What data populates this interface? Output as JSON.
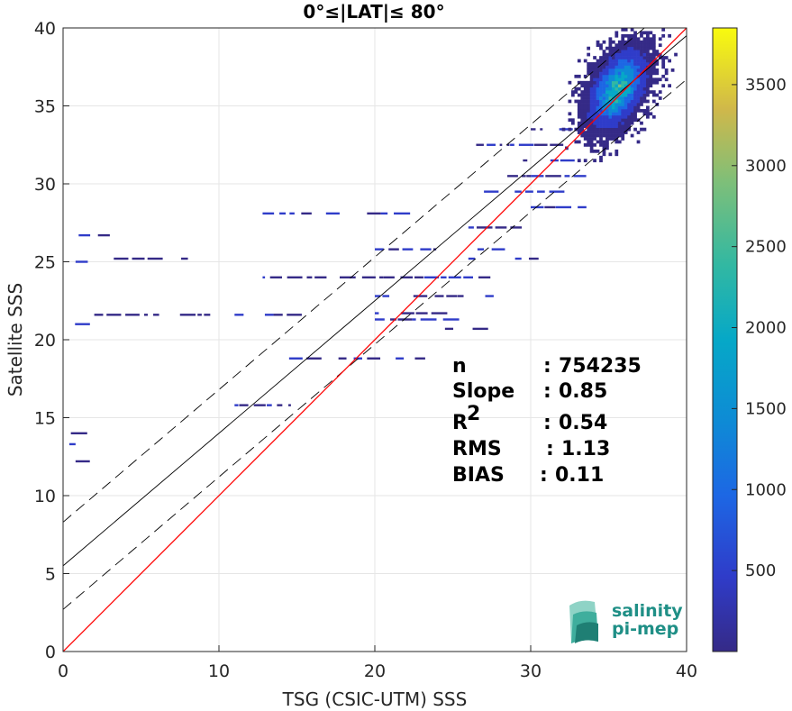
{
  "chart_data": {
    "type": "heatmap",
    "title": "0°≤|LAT|≤ 80°",
    "xlabel": "TSG (CSIC-UTM) SSS",
    "ylabel": "Satellite SSS",
    "xlim": [
      0,
      40
    ],
    "ylim": [
      0,
      40
    ],
    "xticks": [
      "0",
      "10",
      "20",
      "30",
      "40"
    ],
    "yticks": [
      "0",
      "5",
      "10",
      "15",
      "20",
      "25",
      "30",
      "35",
      "40"
    ],
    "grid": true,
    "colorbar": {
      "range": [
        0,
        3850
      ],
      "ticks": [
        "500",
        "1000",
        "1500",
        "2000",
        "2500",
        "3000",
        "3500"
      ],
      "colormap": "parula"
    },
    "stats": [
      {
        "label": "n",
        "sep": ":",
        "value": "754235"
      },
      {
        "label": "Slope",
        "sep": ":",
        "value": "0.85"
      },
      {
        "label": "R",
        "sup": "2",
        "sep": ":",
        "value": "0.54"
      },
      {
        "label": "RMS",
        "sep": ":",
        "value": "1.13"
      },
      {
        "label": "BIAS",
        "sep": ":",
        "value": "0.11"
      }
    ],
    "lines": {
      "identity": {
        "intercept": 0,
        "slope": 1,
        "color": "#ff0000"
      },
      "fit": {
        "intercept": 5.5,
        "slope": 0.85,
        "color": "#000000"
      },
      "fit_upper": {
        "intercept": 8.3,
        "slope": 0.85,
        "color": "#000000",
        "dash": true
      },
      "fit_lower": {
        "intercept": 2.7,
        "slope": 0.85,
        "color": "#000000",
        "dash": true
      }
    },
    "dense_cluster": {
      "x_center": 35.5,
      "y_center": 36.0,
      "x_spread": 1.5,
      "y_spread": 1.8,
      "peak": 3800
    },
    "scatter_segments": [
      {
        "x0": 1.0,
        "x1": 2.3,
        "y": 26.7
      },
      {
        "x0": 0.8,
        "x1": 2.5,
        "y": 25.0
      },
      {
        "x0": 2.5,
        "x1": 7.8,
        "y": 25.2
      },
      {
        "x0": 2.0,
        "x1": 6.0,
        "y": 21.6
      },
      {
        "x0": 7.5,
        "x1": 9.5,
        "y": 21.6
      },
      {
        "x0": 11.0,
        "x1": 13.0,
        "y": 21.6
      },
      {
        "x0": 13.5,
        "x1": 15.5,
        "y": 21.6
      },
      {
        "x0": 12.8,
        "x1": 17.5,
        "y": 28.1
      },
      {
        "x0": 19.5,
        "x1": 22.0,
        "y": 28.1
      },
      {
        "x0": 12.8,
        "x1": 21.0,
        "y": 24.0
      },
      {
        "x0": 21.0,
        "x1": 28.0,
        "y": 24.0
      },
      {
        "x0": 20.0,
        "x1": 28.5,
        "y": 25.8
      },
      {
        "x0": 26.0,
        "x1": 30.0,
        "y": 25.2
      },
      {
        "x0": 20.0,
        "x1": 27.5,
        "y": 22.8
      },
      {
        "x0": 20.0,
        "x1": 24.5,
        "y": 21.7
      },
      {
        "x0": 20.0,
        "x1": 25.0,
        "y": 21.3
      },
      {
        "x0": 14.5,
        "x1": 19.5,
        "y": 18.8
      },
      {
        "x0": 19.5,
        "x1": 23.5,
        "y": 18.8
      },
      {
        "x0": 11.0,
        "x1": 14.5,
        "y": 15.8
      },
      {
        "x0": 24.5,
        "x1": 27.0,
        "y": 20.7
      },
      {
        "x0": 26.0,
        "x1": 29.5,
        "y": 27.2
      },
      {
        "x0": 27.0,
        "x1": 31.5,
        "y": 29.5
      },
      {
        "x0": 28.5,
        "x1": 33.0,
        "y": 30.5
      },
      {
        "x0": 30.0,
        "x1": 33.5,
        "y": 28.5
      },
      {
        "x0": 25.5,
        "x1": 32.0,
        "y": 32.5
      },
      {
        "x0": 30.0,
        "x1": 33.0,
        "y": 33.5
      },
      {
        "x0": 29.5,
        "x1": 32.5,
        "y": 31.5
      },
      {
        "x0": 0.8,
        "x1": 1.5,
        "y": 12.2
      },
      {
        "x0": 0.5,
        "x1": 1.2,
        "y": 14.0
      },
      {
        "x0": 0.3,
        "x1": 0.8,
        "y": 21.0
      },
      {
        "x0": 0.4,
        "x1": 0.9,
        "y": 13.3
      }
    ],
    "logo_text": [
      "salinity",
      "pi-mep"
    ]
  }
}
